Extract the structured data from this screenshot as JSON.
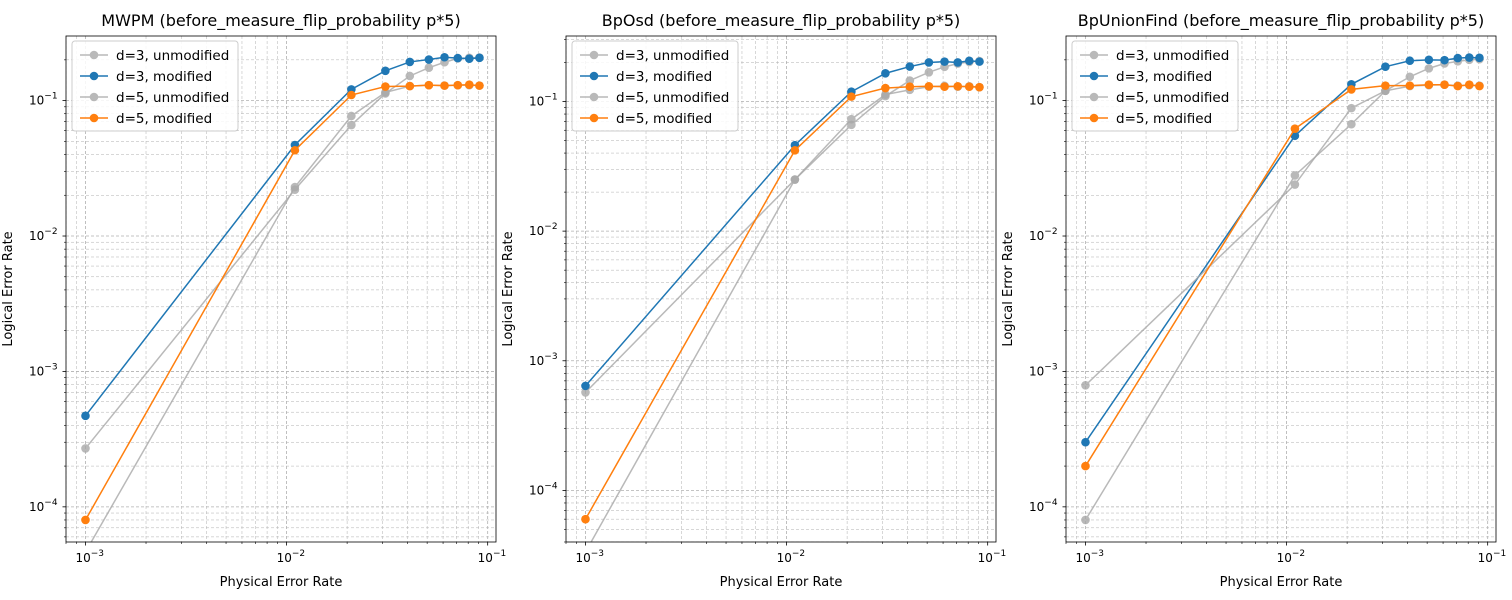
{
  "chart_data": [
    {
      "type": "line",
      "title": "MWPM (before_measure_flip_probability p*5)",
      "xlabel": "Physical Error Rate",
      "ylabel": "Logical Error Rate",
      "xscale": "log",
      "yscale": "log",
      "xlim": [
        0.0008,
        0.11
      ],
      "ylim": [
        5.5e-05,
        0.3
      ],
      "xticks": [
        {
          "base": "10",
          "exp": "−3",
          "value": 0.001
        },
        {
          "base": "10",
          "exp": "−2",
          "value": 0.01
        },
        {
          "base": "10",
          "exp": "−1",
          "value": 0.1
        }
      ],
      "yticks": [
        {
          "base": "10",
          "exp": "−4",
          "value": 0.0001
        },
        {
          "base": "10",
          "exp": "−3",
          "value": 0.001
        },
        {
          "base": "10",
          "exp": "−2",
          "value": 0.01
        },
        {
          "base": "10",
          "exp": "−1",
          "value": 0.1
        }
      ],
      "grid": true,
      "legend": "top-left",
      "x": [
        0.001,
        0.011,
        0.021,
        0.031,
        0.041,
        0.051,
        0.061,
        0.071,
        0.081,
        0.091
      ],
      "series": [
        {
          "name": "d=3, unmodified",
          "color": "#a8a8a8",
          "values": [
            0.00027,
            0.022,
            0.066,
            0.113,
            0.152,
            0.175,
            0.192,
            0.205,
            0.207,
            0.208
          ]
        },
        {
          "name": "d=3, modified",
          "color": "#1f77b4",
          "values": [
            0.00047,
            0.047,
            0.121,
            0.166,
            0.193,
            0.201,
            0.209,
            0.206,
            0.204,
            0.207
          ]
        },
        {
          "name": "d=5, unmodified",
          "color": "#a8a8a8",
          "values": [
            null,
            0.023,
            0.077,
            0.115,
            0.128,
            0.13,
            0.129,
            0.13,
            0.13,
            0.129
          ]
        },
        {
          "name": "d=5, modified",
          "color": "#ff7f0e",
          "values": [
            8e-05,
            0.043,
            0.11,
            0.127,
            0.128,
            0.13,
            0.129,
            0.13,
            0.131,
            0.129
          ]
        }
      ]
    },
    {
      "type": "line",
      "title": "BpOsd (before_measure_flip_probability p*5)",
      "xlabel": "Physical Error Rate",
      "ylabel": "Logical Error Rate",
      "xscale": "log",
      "yscale": "log",
      "xlim": [
        0.0008,
        0.11
      ],
      "ylim": [
        4e-05,
        0.32
      ],
      "xticks": [
        {
          "base": "10",
          "exp": "−3",
          "value": 0.001
        },
        {
          "base": "10",
          "exp": "−2",
          "value": 0.01
        },
        {
          "base": "10",
          "exp": "−1",
          "value": 0.1
        }
      ],
      "yticks": [
        {
          "base": "10",
          "exp": "−4",
          "value": 0.0001
        },
        {
          "base": "10",
          "exp": "−3",
          "value": 0.001
        },
        {
          "base": "10",
          "exp": "−2",
          "value": 0.01
        },
        {
          "base": "10",
          "exp": "−1",
          "value": 0.1
        }
      ],
      "grid": true,
      "legend": "top-left",
      "x": [
        0.001,
        0.011,
        0.021,
        0.031,
        0.041,
        0.051,
        0.061,
        0.071,
        0.081,
        0.091
      ],
      "series": [
        {
          "name": "d=3, unmodified",
          "color": "#a8a8a8",
          "values": [
            0.00057,
            0.025,
            0.066,
            0.11,
            0.145,
            0.168,
            0.185,
            0.196,
            0.202,
            0.205
          ]
        },
        {
          "name": "d=3, modified",
          "color": "#1f77b4",
          "values": [
            0.00064,
            0.046,
            0.119,
            0.165,
            0.186,
            0.2,
            0.203,
            0.2,
            0.206,
            0.203
          ]
        },
        {
          "name": "d=5, unmodified",
          "color": "#a8a8a8",
          "values": [
            null,
            0.025,
            0.073,
            0.113,
            0.123,
            0.13,
            0.132,
            0.13,
            0.131,
            0.129
          ]
        },
        {
          "name": "d=5, modified",
          "color": "#ff7f0e",
          "values": [
            6e-05,
            0.042,
            0.109,
            0.127,
            0.13,
            0.131,
            0.13,
            0.131,
            0.13,
            0.129
          ]
        }
      ]
    },
    {
      "type": "line",
      "title": "BpUnionFind (before_measure_flip_probability p*5)",
      "xlabel": "Physical Error Rate",
      "ylabel": "Logical Error Rate",
      "xscale": "log",
      "yscale": "log",
      "xlim": [
        0.0008,
        0.11
      ],
      "ylim": [
        5.5e-05,
        0.3
      ],
      "xticks": [
        {
          "base": "10",
          "exp": "−3",
          "value": 0.001
        },
        {
          "base": "10",
          "exp": "−2",
          "value": 0.01
        },
        {
          "base": "10",
          "exp": "−1",
          "value": 0.1
        }
      ],
      "yticks": [
        {
          "base": "10",
          "exp": "−4",
          "value": 0.0001
        },
        {
          "base": "10",
          "exp": "−3",
          "value": 0.001
        },
        {
          "base": "10",
          "exp": "−2",
          "value": 0.01
        },
        {
          "base": "10",
          "exp": "−1",
          "value": 0.1
        }
      ],
      "grid": true,
      "legend": "top-left",
      "x": [
        0.001,
        0.011,
        0.021,
        0.031,
        0.041,
        0.051,
        0.061,
        0.071,
        0.081,
        0.091
      ],
      "series": [
        {
          "name": "d=3, unmodified",
          "color": "#a8a8a8",
          "values": [
            8e-05,
            0.028,
            0.067,
            0.118,
            0.15,
            0.173,
            0.188,
            0.195,
            0.2,
            0.202
          ]
        },
        {
          "name": "d=3, modified",
          "color": "#1f77b4",
          "values": [
            0.0003,
            0.055,
            0.132,
            0.178,
            0.197,
            0.2,
            0.199,
            0.206,
            0.208,
            0.207
          ]
        },
        {
          "name": "d=5, unmodified",
          "color": "#a8a8a8",
          "values": [
            0.00079,
            0.024,
            0.088,
            0.118,
            0.128,
            0.13,
            0.131,
            0.129,
            0.13,
            0.129
          ]
        },
        {
          "name": "d=5, modified",
          "color": "#ff7f0e",
          "values": [
            0.0002,
            0.062,
            0.121,
            0.129,
            0.129,
            0.131,
            0.131,
            0.128,
            0.131,
            0.128
          ]
        }
      ]
    }
  ]
}
